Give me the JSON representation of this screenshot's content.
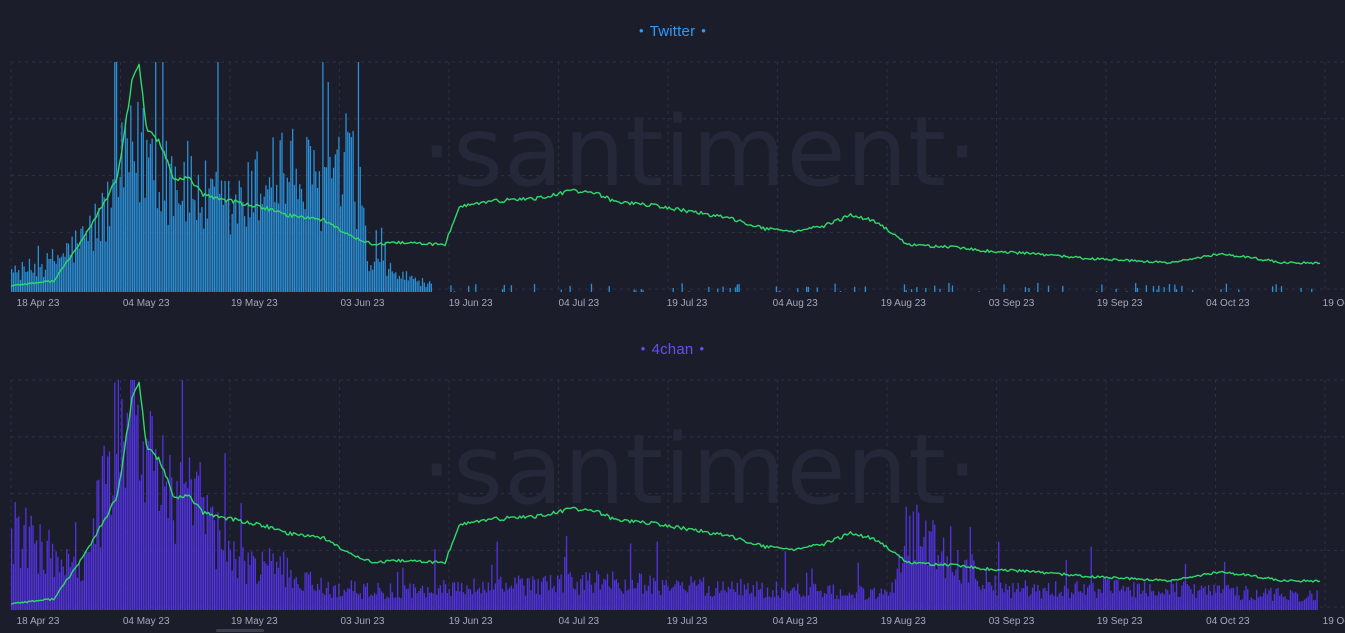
{
  "colors": {
    "background": "#1b1d2b",
    "grid": "#2c3042",
    "price_line": "#2fd96a",
    "twitter": "#2b8fd6",
    "twitter_title": "#2f9bff",
    "fourchan": "#5233e0",
    "fourchan_title": "#6a4cff"
  },
  "watermark": "·santiment·",
  "x_ticks": [
    "18 Apr 23",
    "04 May 23",
    "19 May 23",
    "03 Jun 23",
    "19 Jun 23",
    "04 Jul 23",
    "19 Jul 23",
    "04 Aug 23",
    "19 Aug 23",
    "03 Sep 23",
    "19 Sep 23",
    "04 Oct 23",
    "19 Oc"
  ],
  "chart_data": [
    {
      "type": "bar",
      "title": "Twitter",
      "x_range": [
        "2023-04-18",
        "2023-10-19"
      ],
      "grid": true,
      "series": [
        {
          "name": "Twitter",
          "kind": "bar",
          "note_values": "relative height 0-1",
          "x": [
            "2023-04-18",
            "2023-04-23",
            "2023-04-28",
            "2023-05-01",
            "2023-05-04",
            "2023-05-07",
            "2023-05-10",
            "2023-05-13",
            "2023-05-16",
            "2023-05-19",
            "2023-05-22",
            "2023-05-25",
            "2023-05-28",
            "2023-05-31",
            "2023-06-03",
            "2023-06-06",
            "2023-06-07",
            "2023-06-19",
            "2023-07-04",
            "2023-07-19",
            "2023-08-04",
            "2023-08-19",
            "2023-08-22",
            "2023-09-03",
            "2023-09-19",
            "2023-10-04",
            "2023-10-19"
          ],
          "values": [
            0.08,
            0.12,
            0.22,
            0.33,
            0.55,
            0.62,
            0.52,
            0.45,
            0.38,
            0.35,
            0.42,
            0.55,
            0.5,
            0.46,
            0.48,
            0.5,
            0.12,
            0.0,
            0.01,
            0.01,
            0.01,
            0.0,
            0.02,
            0.01,
            0.0,
            0.0,
            0.0
          ]
        },
        {
          "name": "Price",
          "kind": "line",
          "x": [
            "2023-04-18",
            "2023-04-24",
            "2023-04-28",
            "2023-05-01",
            "2023-05-03",
            "2023-05-05",
            "2023-05-06",
            "2023-05-07",
            "2023-05-09",
            "2023-05-11",
            "2023-05-13",
            "2023-05-15",
            "2023-05-18",
            "2023-05-21",
            "2023-05-24",
            "2023-05-27",
            "2023-05-30",
            "2023-06-01",
            "2023-06-04",
            "2023-06-08",
            "2023-06-12",
            "2023-06-18",
            "2023-06-20",
            "2023-06-24",
            "2023-06-28",
            "2023-07-02",
            "2023-07-06",
            "2023-07-09",
            "2023-07-12",
            "2023-07-16",
            "2023-07-20",
            "2023-07-24",
            "2023-07-29",
            "2023-08-02",
            "2023-08-06",
            "2023-08-10",
            "2023-08-14",
            "2023-08-17",
            "2023-08-20",
            "2023-08-22",
            "2023-08-28",
            "2023-09-03",
            "2023-09-09",
            "2023-09-16",
            "2023-09-22",
            "2023-09-28",
            "2023-10-05",
            "2023-10-10",
            "2023-10-14",
            "2023-10-19"
          ],
          "values": [
            0.02,
            0.04,
            0.22,
            0.38,
            0.5,
            0.92,
            1.0,
            0.72,
            0.65,
            0.48,
            0.5,
            0.42,
            0.4,
            0.38,
            0.36,
            0.33,
            0.32,
            0.31,
            0.25,
            0.2,
            0.21,
            0.2,
            0.37,
            0.39,
            0.4,
            0.41,
            0.44,
            0.43,
            0.39,
            0.38,
            0.36,
            0.34,
            0.31,
            0.27,
            0.26,
            0.28,
            0.33,
            0.31,
            0.25,
            0.2,
            0.19,
            0.17,
            0.16,
            0.14,
            0.13,
            0.12,
            0.16,
            0.14,
            0.12,
            0.12
          ]
        }
      ]
    },
    {
      "type": "bar",
      "title": "4chan",
      "x_range": [
        "2023-04-18",
        "2023-10-19"
      ],
      "grid": true,
      "series": [
        {
          "name": "4chan",
          "kind": "bar",
          "note_values": "relative height 0-1",
          "x": [
            "2023-04-18",
            "2023-04-23",
            "2023-04-28",
            "2023-05-01",
            "2023-05-03",
            "2023-05-06",
            "2023-05-09",
            "2023-05-12",
            "2023-05-15",
            "2023-05-18",
            "2023-05-21",
            "2023-05-25",
            "2023-05-31",
            "2023-06-10",
            "2023-06-25",
            "2023-07-10",
            "2023-07-25",
            "2023-08-10",
            "2023-08-20",
            "2023-08-22",
            "2023-09-05",
            "2023-09-20",
            "2023-10-05",
            "2023-10-19"
          ],
          "values": [
            0.35,
            0.25,
            0.15,
            0.5,
            0.75,
            0.9,
            0.55,
            0.48,
            0.42,
            0.25,
            0.18,
            0.2,
            0.1,
            0.08,
            0.1,
            0.12,
            0.1,
            0.08,
            0.07,
            0.35,
            0.08,
            0.1,
            0.08,
            0.06
          ]
        },
        {
          "name": "Price",
          "kind": "line",
          "x": [
            "2023-04-18",
            "2023-04-24",
            "2023-04-28",
            "2023-05-01",
            "2023-05-03",
            "2023-05-05",
            "2023-05-06",
            "2023-05-07",
            "2023-05-09",
            "2023-05-11",
            "2023-05-13",
            "2023-05-15",
            "2023-05-18",
            "2023-05-21",
            "2023-05-24",
            "2023-05-27",
            "2023-05-30",
            "2023-06-01",
            "2023-06-04",
            "2023-06-08",
            "2023-06-12",
            "2023-06-18",
            "2023-06-20",
            "2023-06-24",
            "2023-06-28",
            "2023-07-02",
            "2023-07-06",
            "2023-07-09",
            "2023-07-12",
            "2023-07-16",
            "2023-07-20",
            "2023-07-24",
            "2023-07-29",
            "2023-08-02",
            "2023-08-06",
            "2023-08-10",
            "2023-08-14",
            "2023-08-17",
            "2023-08-20",
            "2023-08-22",
            "2023-08-28",
            "2023-09-03",
            "2023-09-09",
            "2023-09-16",
            "2023-09-22",
            "2023-09-28",
            "2023-10-05",
            "2023-10-10",
            "2023-10-14",
            "2023-10-19"
          ],
          "values": [
            0.02,
            0.04,
            0.22,
            0.38,
            0.5,
            0.92,
            1.0,
            0.72,
            0.65,
            0.48,
            0.5,
            0.42,
            0.4,
            0.38,
            0.36,
            0.33,
            0.32,
            0.31,
            0.25,
            0.2,
            0.21,
            0.2,
            0.37,
            0.39,
            0.4,
            0.41,
            0.44,
            0.43,
            0.39,
            0.38,
            0.36,
            0.34,
            0.31,
            0.27,
            0.26,
            0.28,
            0.33,
            0.31,
            0.25,
            0.2,
            0.19,
            0.17,
            0.16,
            0.14,
            0.13,
            0.12,
            0.16,
            0.14,
            0.12,
            0.12
          ]
        }
      ]
    }
  ]
}
